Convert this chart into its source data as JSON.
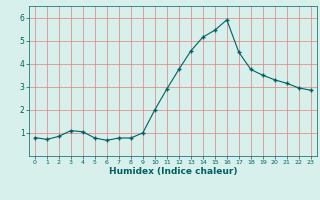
{
  "x": [
    0,
    1,
    2,
    3,
    4,
    5,
    6,
    7,
    8,
    9,
    10,
    11,
    12,
    13,
    14,
    15,
    16,
    17,
    18,
    19,
    20,
    21,
    22,
    23
  ],
  "y": [
    0.8,
    0.72,
    0.85,
    1.1,
    1.05,
    0.78,
    0.68,
    0.78,
    0.78,
    1.0,
    2.0,
    2.9,
    3.75,
    4.55,
    5.15,
    5.45,
    5.9,
    4.5,
    3.75,
    3.5,
    3.3,
    3.15,
    2.95,
    2.85
  ],
  "line_color": "#006060",
  "marker": "+",
  "marker_size": 3,
  "grid_color": "#c0d8d0",
  "xlabel": "Humidex (Indice chaleur)",
  "xlim": [
    -0.5,
    23.5
  ],
  "ylim": [
    0,
    6.5
  ],
  "yticks": [
    1,
    2,
    3,
    4,
    5,
    6
  ],
  "xticks": [
    0,
    1,
    2,
    3,
    4,
    5,
    6,
    7,
    8,
    9,
    10,
    11,
    12,
    13,
    14,
    15,
    16,
    17,
    18,
    19,
    20,
    21,
    22,
    23
  ],
  "plot_bg_color": "#d8f0ec",
  "outer_bg_color": "#d8f0ec"
}
